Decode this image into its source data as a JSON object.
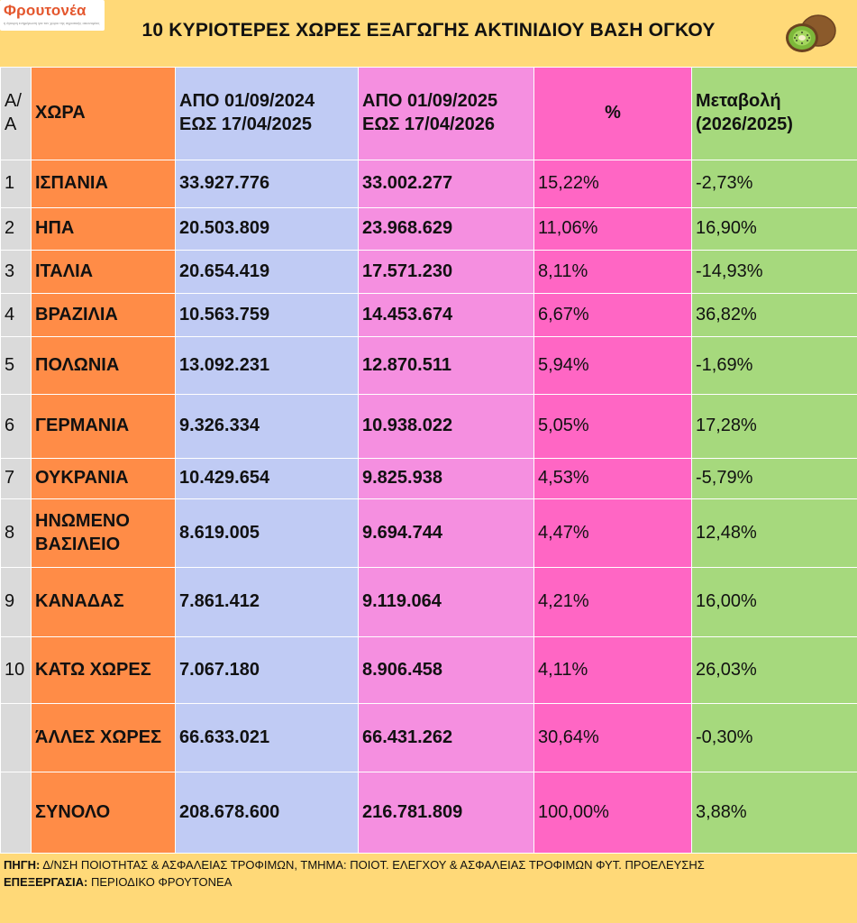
{
  "header": {
    "logo_name": "Φρουτονέα",
    "logo_tagline": "η έγκυρη ενημέρωση για τον χώρο της αγροτικής οικονομίας",
    "title": "10 ΚΥΡΙΟΤΕΡΕΣ ΧΩΡΕΣ ΕΞΑΓΩΓΗΣ ΑΚΤΙΝΙΔΙΟΥ ΒΑΣΗ ΟΓΚΟΥ",
    "icon": "kiwi-icon"
  },
  "table": {
    "columns": [
      {
        "line1": "Α/",
        "line2": "Α"
      },
      {
        "line1": "ΧΩΡΑ",
        "line2": ""
      },
      {
        "line1": "ΑΠΟ 01/09/2024",
        "line2": "ΕΩΣ  17/04/2025"
      },
      {
        "line1": "ΑΠΟ 01/09/2025",
        "line2": "ΕΩΣ  17/04/2026"
      },
      {
        "line1": "%",
        "line2": ""
      },
      {
        "line1": "Μεταβολή",
        "line2": "(2026/2025)"
      }
    ],
    "rows": [
      {
        "rank": "1",
        "country": "ΙΣΠΑΝΙΑ",
        "v2025": "33.927.776",
        "v2026": "33.002.277",
        "pct": "15,22%",
        "change": "-2,73%"
      },
      {
        "rank": "2",
        "country": "ΗΠΑ",
        "v2025": "20.503.809",
        "v2026": "23.968.629",
        "pct": "11,06%",
        "change": "16,90%"
      },
      {
        "rank": "3",
        "country": "ΙΤΑΛΙΑ",
        "v2025": "20.654.419",
        "v2026": "17.571.230",
        "pct": "8,11%",
        "change": "-14,93%"
      },
      {
        "rank": "4",
        "country": "ΒΡΑΖΙΛΙΑ",
        "v2025": "10.563.759",
        "v2026": "14.453.674",
        "pct": "6,67%",
        "change": "36,82%"
      },
      {
        "rank": "5",
        "country": "ΠΟΛΩΝΙΑ",
        "v2025": "13.092.231",
        "v2026": "12.870.511",
        "pct": "5,94%",
        "change": "-1,69%"
      },
      {
        "rank": "6",
        "country": "ΓΕΡΜΑΝΙΑ",
        "v2025": "9.326.334",
        "v2026": "10.938.022",
        "pct": "5,05%",
        "change": "17,28%"
      },
      {
        "rank": "7",
        "country": "ΟΥΚΡΑΝΙΑ",
        "v2025": "10.429.654",
        "v2026": "9.825.938",
        "pct": "4,53%",
        "change": "-5,79%"
      },
      {
        "rank": "8",
        "country": "ΗΝΩΜΕΝΟ ΒΑΣΙΛΕΙΟ",
        "v2025": "8.619.005",
        "v2026": "9.694.744",
        "pct": "4,47%",
        "change": "12,48%"
      },
      {
        "rank": "9",
        "country": "ΚΑΝΑΔΑΣ",
        "v2025": "7.861.412",
        "v2026": "9.119.064",
        "pct": "4,21%",
        "change": "16,00%"
      },
      {
        "rank": "10",
        "country": "ΚΑΤΩ ΧΩΡΕΣ",
        "v2025": "7.067.180",
        "v2026": "8.906.458",
        "pct": "4,11%",
        "change": "26,03%"
      },
      {
        "rank": "",
        "country": "ΆΛΛΕΣ ΧΩΡΕΣ",
        "v2025": "66.633.021",
        "v2026": "66.431.262",
        "pct": "30,64%",
        "change": "-0,30%"
      },
      {
        "rank": "",
        "country": "ΣΥΝΟΛΟ",
        "v2025": "208.678.600",
        "v2026": "216.781.809",
        "pct": "100,00%",
        "change": "3,88%"
      }
    ]
  },
  "footer": {
    "source_label": "ΠΗΓΗ:",
    "source_text": " Δ/ΝΣΗ ΠΟΙΟΤΗΤΑΣ & ΑΣΦΑΛΕΙΑΣ ΤΡΟΦΙΜΩΝ, ΤΜΗΜΑ: ΠΟΙΟΤ. ΕΛΕΓΧΟΥ & ΑΣΦΑΛΕΙΑΣ ΤΡΟΦΙΜΩΝ ΦΥΤ. ΠΡΟΕΛΕΥΣΗΣ",
    "processing_label": "ΕΠΕΞΕΡΓΑΣΙΑ:",
    "processing_text": " ΠΕΡΙΟΔΙΚΟ ΦΡΟΥΤΟΝΕΑ"
  },
  "colors": {
    "background": "#FFD978",
    "rank_col": "#DADADA",
    "country_col": "#FF8C47",
    "period1_col": "#C0CBF4",
    "period2_col": "#F58FE0",
    "pct_col": "#FF66C4",
    "change_col": "#A6D97D",
    "logo_accent": "#E4572E"
  }
}
